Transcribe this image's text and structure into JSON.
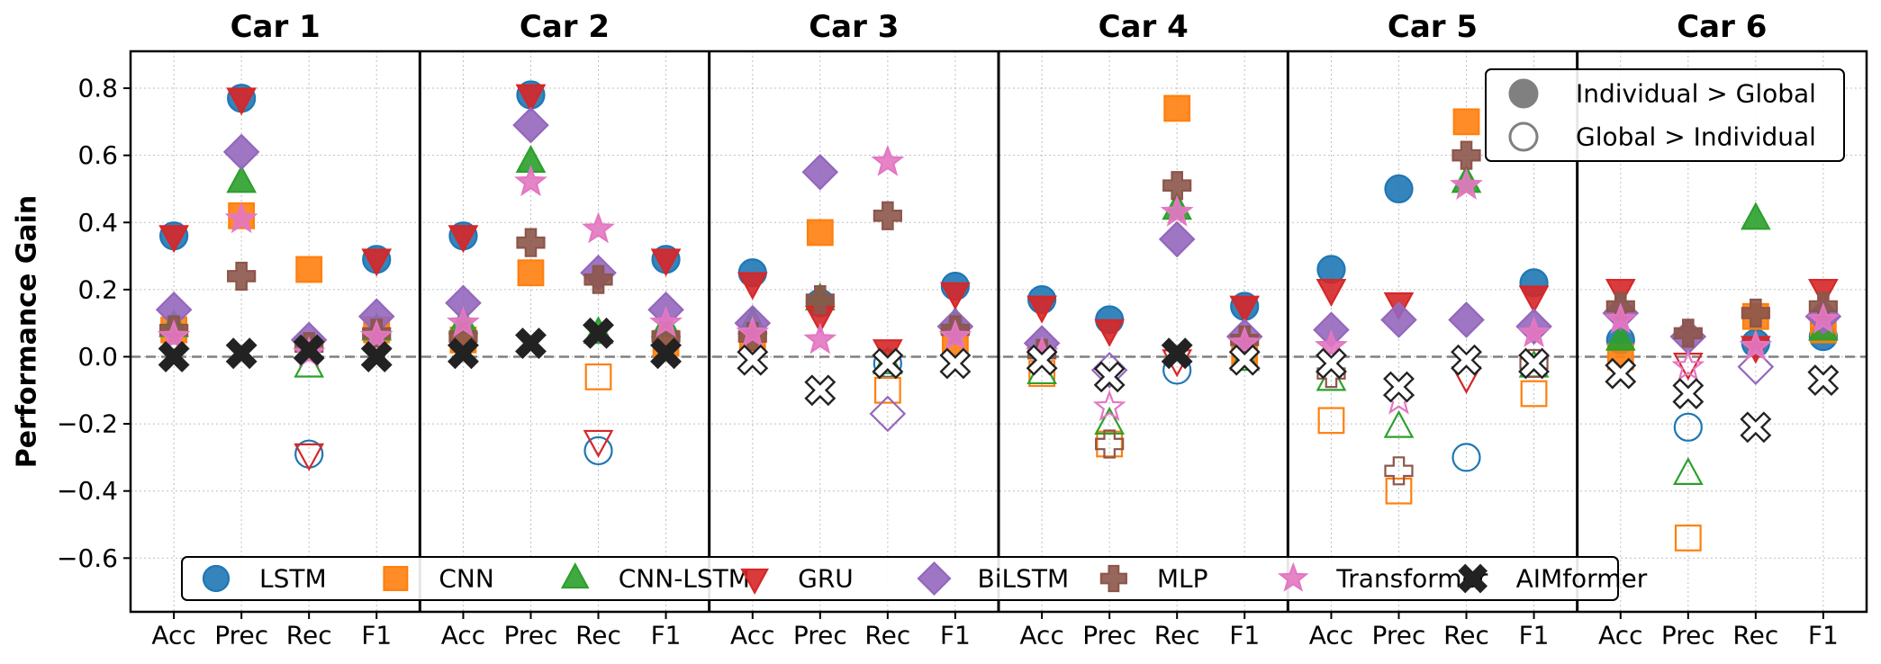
{
  "chart_data": {
    "type": "scatter",
    "ylabel": "Performance Gain",
    "ylim": [
      -0.76,
      0.91
    ],
    "yticks": [
      -0.6,
      -0.4,
      -0.2,
      0.0,
      0.2,
      0.4,
      0.6,
      0.8
    ],
    "ytick_labels": [
      "−0.6",
      "−0.4",
      "−0.2",
      "0.0",
      "0.2",
      "0.4",
      "0.6",
      "0.8"
    ],
    "grid": true,
    "reference_line": 0.0,
    "metrics": [
      "Acc",
      "Prec",
      "Rec",
      "F1"
    ],
    "panels": [
      "Car 1",
      "Car 2",
      "Car 3",
      "Car 4",
      "Car 5",
      "Car 6"
    ],
    "fill_legend": {
      "position": "top-right",
      "items": [
        {
          "label": "Individual > Global",
          "filled": true
        },
        {
          "label": "Global > Individual",
          "filled": false
        }
      ]
    },
    "model_legend_position": "lower-center",
    "series": [
      {
        "name": "LSTM",
        "marker": "circle",
        "color": "#1f77b4",
        "values": [
          [
            0.36,
            0.77,
            -0.29,
            0.29
          ],
          [
            0.36,
            0.78,
            -0.28,
            0.29
          ],
          [
            0.25,
            0.16,
            -0.02,
            0.21
          ],
          [
            0.17,
            0.11,
            -0.04,
            0.15
          ],
          [
            0.26,
            0.5,
            -0.3,
            0.22
          ],
          [
            0.05,
            -0.21,
            0.04,
            0.06
          ]
        ]
      },
      {
        "name": "CNN",
        "marker": "square",
        "color": "#ff7f0e",
        "values": [
          [
            0.08,
            0.42,
            0.26,
            0.08
          ],
          [
            0.05,
            0.25,
            -0.06,
            0.04
          ],
          [
            0.05,
            0.37,
            -0.1,
            0.04
          ],
          [
            -0.05,
            -0.26,
            0.74,
            0.01
          ],
          [
            -0.19,
            -0.4,
            0.7,
            -0.11
          ],
          [
            0.0,
            -0.54,
            0.12,
            0.08
          ]
        ]
      },
      {
        "name": "CNN-LSTM",
        "marker": "triangle-up",
        "color": "#2ca02c",
        "values": [
          [
            0.09,
            0.52,
            -0.03,
            0.08
          ],
          [
            0.1,
            0.58,
            0.07,
            0.09
          ],
          [
            0.1,
            0.17,
            -0.02,
            0.1
          ],
          [
            -0.05,
            -0.2,
            0.44,
            -0.01
          ],
          [
            -0.07,
            -0.21,
            0.52,
            -0.03
          ],
          [
            0.05,
            -0.35,
            0.41,
            0.08
          ]
        ]
      },
      {
        "name": "GRU",
        "marker": "triangle-down",
        "color": "#d62728",
        "values": [
          [
            0.36,
            0.77,
            -0.29,
            0.29
          ],
          [
            0.36,
            0.78,
            -0.25,
            0.29
          ],
          [
            0.22,
            0.12,
            0.02,
            0.19
          ],
          [
            0.15,
            0.08,
            -0.01,
            0.15
          ],
          [
            0.2,
            0.16,
            -0.06,
            0.18
          ],
          [
            0.2,
            -0.02,
            0.03,
            0.2
          ]
        ]
      },
      {
        "name": "BiLSTM",
        "marker": "diamond",
        "color": "#9467bd",
        "values": [
          [
            0.14,
            0.61,
            0.05,
            0.12
          ],
          [
            0.16,
            0.69,
            0.25,
            0.14
          ],
          [
            0.1,
            0.55,
            -0.17,
            0.09
          ],
          [
            0.04,
            -0.04,
            0.35,
            0.06
          ],
          [
            0.08,
            0.11,
            0.11,
            0.09
          ],
          [
            0.13,
            0.06,
            -0.03,
            0.12
          ]
        ]
      },
      {
        "name": "MLP",
        "marker": "plus",
        "color": "#8c564b",
        "values": [
          [
            0.08,
            0.24,
            0.03,
            0.07
          ],
          [
            0.06,
            0.34,
            0.23,
            0.06
          ],
          [
            0.06,
            0.17,
            0.42,
            0.08
          ],
          [
            0.01,
            -0.26,
            0.51,
            0.05
          ],
          [
            -0.05,
            -0.34,
            0.6,
            -0.02
          ],
          [
            0.15,
            0.07,
            0.13,
            0.15
          ]
        ]
      },
      {
        "name": "Transformer",
        "marker": "star",
        "color": "#e377c2",
        "values": [
          [
            0.06,
            0.41,
            0.01,
            0.06
          ],
          [
            0.1,
            0.52,
            0.38,
            0.1
          ],
          [
            0.07,
            0.05,
            0.58,
            0.06
          ],
          [
            0.01,
            -0.15,
            0.43,
            0.04
          ],
          [
            0.03,
            -0.13,
            0.51,
            0.07
          ],
          [
            0.11,
            -0.03,
            0.03,
            0.11
          ]
        ]
      },
      {
        "name": "AIMformer",
        "marker": "x",
        "color": "#222222",
        "values": [
          [
            0.0,
            0.01,
            0.02,
            0.0
          ],
          [
            0.01,
            0.04,
            0.07,
            0.01
          ],
          [
            -0.01,
            -0.1,
            -0.02,
            -0.02
          ],
          [
            -0.01,
            -0.06,
            0.01,
            -0.01
          ],
          [
            -0.02,
            -0.09,
            -0.01,
            -0.02
          ],
          [
            -0.05,
            -0.11,
            -0.21,
            -0.07
          ]
        ]
      }
    ]
  }
}
